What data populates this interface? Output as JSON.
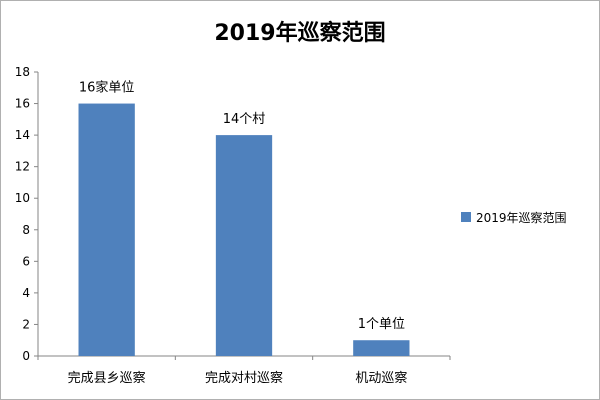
{
  "chart_data": {
    "type": "bar",
    "title": "2019年巡察范围",
    "categories": [
      "完成县乡巡察",
      "完成对村巡察",
      "机动巡察"
    ],
    "series": [
      {
        "name": "2019年巡察范围",
        "values": [
          16,
          14,
          1
        ],
        "data_labels": [
          "16家单位",
          "14个村",
          "1个单位"
        ],
        "color": "#4f81bd"
      }
    ],
    "ylim": [
      0,
      18
    ],
    "yticks": [
      "0",
      "2",
      "4",
      "6",
      "8",
      "10",
      "12",
      "14",
      "16",
      "18"
    ],
    "xlabel": "",
    "ylabel": "",
    "grid": false,
    "legend": "right"
  }
}
